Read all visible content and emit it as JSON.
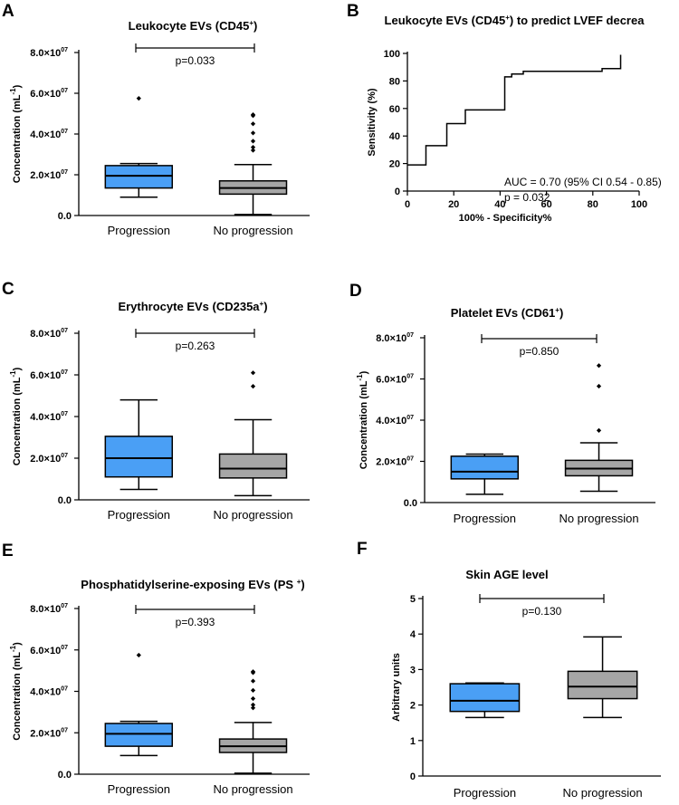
{
  "panels": [
    {
      "letter": "A",
      "title": "Leukocyte EVs (CD45",
      "title_sup": "+",
      "title_tail": ")"
    },
    {
      "letter": "B",
      "title": "Leukocyte EVs (CD45",
      "title_sup": "+",
      "title_tail": ") to predict LVEF decrea"
    },
    {
      "letter": "C",
      "title": "Erythrocyte EVs (CD235a",
      "title_sup": "+",
      "title_tail": ")"
    },
    {
      "letter": "D",
      "title": "Platelet EVs (CD61",
      "title_sup": "+",
      "title_tail": ")"
    },
    {
      "letter": "E",
      "title": "Phosphatidylserine-exposing EVs (PS ",
      "title_sup": "+",
      "title_tail": ")"
    },
    {
      "letter": "F",
      "title": "Skin AGE level",
      "title_sup": "",
      "title_tail": ""
    }
  ],
  "colors": {
    "progression": "#4a9ff5",
    "no_progression": "#a6a6a6",
    "line": "#000000"
  },
  "chart_data": [
    {
      "id": "A",
      "type": "box",
      "ylabel": "Concentration (mL",
      "ylabel_sup": "-1",
      "ylabel_tail": ")",
      "yticks": [
        "0.0",
        "2.0×10",
        "4.0×10",
        "6.0×10",
        "8.0×10"
      ],
      "ytick_sup": "07",
      "ylim": [
        0,
        8
      ],
      "categories": [
        "Progression",
        "No progression"
      ],
      "pvalue": "p=0.033",
      "boxes": [
        {
          "min": 0.9,
          "q1": 1.35,
          "median": 1.95,
          "q3": 2.45,
          "max": 2.55,
          "outliers": [
            5.75
          ]
        },
        {
          "min": 0.05,
          "q1": 1.05,
          "median": 1.35,
          "q3": 1.7,
          "max": 2.5,
          "outliers": [
            3.2,
            3.35,
            3.65,
            4.05,
            4.5,
            4.9,
            4.95
          ]
        }
      ]
    },
    {
      "id": "B",
      "type": "line",
      "xlabel": "100% - Specificity%",
      "ylabel": "Sensitivity (%)",
      "xlim": [
        0,
        100
      ],
      "ylim": [
        0,
        100
      ],
      "xticks": [
        "0",
        "20",
        "40",
        "60",
        "80",
        "100"
      ],
      "yticks": [
        "0",
        "20",
        "40",
        "60",
        "80",
        "100"
      ],
      "annotation": [
        "AUC = 0.70 (95% CI 0.54 - 0.85)",
        "p = 0.032"
      ],
      "x": [
        0,
        8,
        8,
        17,
        17,
        25,
        25,
        42,
        42,
        45,
        45,
        50,
        50,
        84,
        84,
        92,
        92
      ],
      "y": [
        19,
        19,
        33,
        33,
        49,
        49,
        59,
        59,
        83,
        83,
        85,
        85,
        87,
        87,
        89,
        89,
        99
      ]
    },
    {
      "id": "C",
      "type": "box",
      "ylabel": "Concentration (mL",
      "ylabel_sup": "-1",
      "ylabel_tail": ")",
      "yticks": [
        "0.0",
        "2.0×10",
        "4.0×10",
        "6.0×10",
        "8.0×10"
      ],
      "ytick_sup": "07",
      "ylim": [
        0,
        8
      ],
      "categories": [
        "Progression",
        "No progression"
      ],
      "pvalue": "p=0.263",
      "boxes": [
        {
          "min": 0.5,
          "q1": 1.1,
          "median": 2.0,
          "q3": 3.05,
          "max": 4.8,
          "outliers": []
        },
        {
          "min": 0.2,
          "q1": 1.05,
          "median": 1.5,
          "q3": 2.2,
          "max": 3.85,
          "outliers": [
            5.45,
            6.1
          ]
        }
      ]
    },
    {
      "id": "D",
      "type": "box",
      "ylabel": "Concentration (mL",
      "ylabel_sup": "-1",
      "ylabel_tail": ")",
      "yticks": [
        "0.0",
        "2.0×10",
        "4.0×10",
        "6.0×10",
        "8.0×10"
      ],
      "ytick_sup": "07",
      "ylim": [
        0,
        8
      ],
      "categories": [
        "Progression",
        "No progression"
      ],
      "pvalue": "p=0.850",
      "boxes": [
        {
          "min": 0.4,
          "q1": 1.15,
          "median": 1.5,
          "q3": 2.25,
          "max": 2.35,
          "outliers": []
        },
        {
          "min": 0.55,
          "q1": 1.3,
          "median": 1.65,
          "q3": 2.05,
          "max": 2.9,
          "outliers": [
            3.5,
            5.65,
            6.65
          ]
        }
      ]
    },
    {
      "id": "E",
      "type": "box",
      "ylabel": "Concentration (mL",
      "ylabel_sup": "-1",
      "ylabel_tail": ")",
      "yticks": [
        "0.0",
        "2.0×10",
        "4.0×10",
        "6.0×10",
        "8.0×10"
      ],
      "ytick_sup": "07",
      "ylim": [
        0,
        8
      ],
      "categories": [
        "Progression",
        "No progression"
      ],
      "pvalue": "p=0.393",
      "boxes": [
        {
          "min": 0.9,
          "q1": 1.35,
          "median": 1.95,
          "q3": 2.45,
          "max": 2.55,
          "outliers": [
            5.75
          ]
        },
        {
          "min": 0.05,
          "q1": 1.05,
          "median": 1.35,
          "q3": 1.7,
          "max": 2.5,
          "outliers": [
            3.2,
            3.35,
            3.65,
            4.05,
            4.5,
            4.9,
            4.95
          ]
        }
      ]
    },
    {
      "id": "F",
      "type": "box",
      "ylabel": "Arbitrary units",
      "ylabel_sup": "",
      "ylabel_tail": "",
      "yticks": [
        "0",
        "1",
        "2",
        "3",
        "4",
        "5"
      ],
      "ytick_sup": "",
      "ylim": [
        0,
        5
      ],
      "categories": [
        "Progression",
        "No progression"
      ],
      "pvalue": "p=0.130",
      "boxes": [
        {
          "min": 1.65,
          "q1": 1.82,
          "median": 2.12,
          "q3": 2.6,
          "max": 2.62,
          "outliers": []
        },
        {
          "min": 1.65,
          "q1": 2.18,
          "median": 2.52,
          "q3": 2.95,
          "max": 3.92,
          "outliers": []
        }
      ]
    }
  ]
}
